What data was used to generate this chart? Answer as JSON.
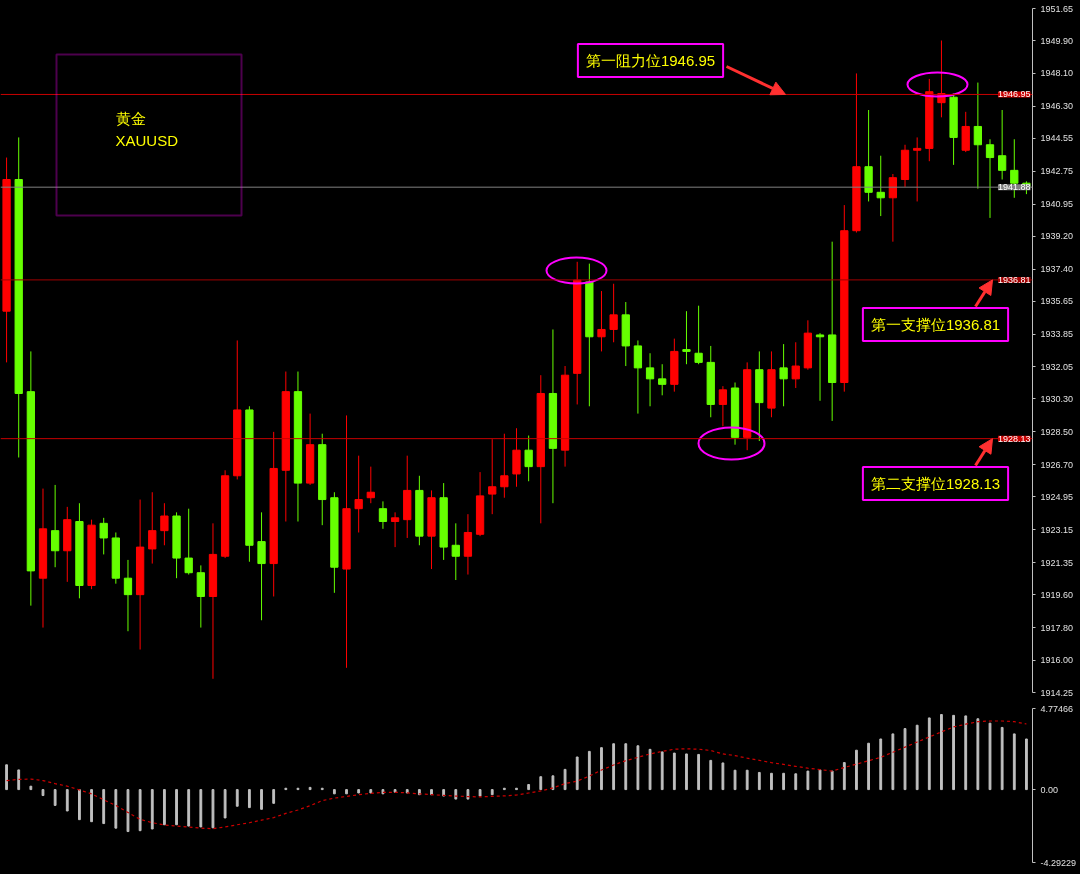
{
  "chart_data": [
    {
      "type": "candlestick",
      "categories": [
        null,
        null,
        null,
        null,
        null,
        null,
        null,
        null,
        null,
        null,
        null,
        null,
        null,
        null,
        null,
        null,
        null,
        null,
        null,
        null,
        null,
        null,
        null,
        null,
        null,
        null,
        null,
        null,
        null,
        null,
        null,
        null,
        null,
        null,
        null,
        null,
        null,
        null,
        null,
        null,
        null,
        null,
        null,
        null,
        null,
        null,
        null,
        null,
        null,
        null,
        null,
        null,
        null,
        null,
        null,
        null,
        null,
        null,
        null,
        null,
        null,
        null,
        null,
        null,
        null,
        null,
        null,
        null,
        null,
        null,
        null,
        null,
        null,
        null,
        null,
        null,
        null,
        null,
        null,
        null,
        null,
        null,
        null,
        null,
        null
      ],
      "ohlc": [
        [
          1935.1,
          1943.5,
          1932.3,
          1942.3
        ],
        [
          1942.3,
          1944.6,
          1927.1,
          1930.6
        ],
        [
          1930.7,
          1932.9,
          1919.0,
          1920.9
        ],
        [
          1920.5,
          1925.4,
          1917.8,
          1923.2
        ],
        [
          1923.1,
          1925.6,
          1921.1,
          1922.0
        ],
        [
          1922.0,
          1924.4,
          1920.3,
          1923.7
        ],
        [
          1923.6,
          1924.6,
          1919.4,
          1920.1
        ],
        [
          1920.1,
          1923.7,
          1919.9,
          1923.4
        ],
        [
          1923.5,
          1923.8,
          1921.8,
          1922.7
        ],
        [
          1922.7,
          1923.0,
          1920.2,
          1920.5
        ],
        [
          1920.5,
          1921.5,
          1917.6,
          1919.6
        ],
        [
          1919.6,
          1924.8,
          1916.6,
          1922.2
        ],
        [
          1922.1,
          1925.2,
          1921.3,
          1923.1
        ],
        [
          1923.1,
          1924.6,
          1922.3,
          1923.9
        ],
        [
          1923.9,
          1924.1,
          1920.5,
          1921.6
        ],
        [
          1921.6,
          1924.3,
          1920.7,
          1920.8
        ],
        [
          1920.8,
          1921.2,
          1917.8,
          1919.5
        ],
        [
          1919.5,
          1923.5,
          1915.0,
          1921.8
        ],
        [
          1921.7,
          1926.4,
          1921.6,
          1926.1
        ],
        [
          1926.1,
          1933.5,
          1925.9,
          1929.7
        ],
        [
          1929.7,
          1929.9,
          1921.4,
          1922.3
        ],
        [
          1922.5,
          1924.1,
          1918.2,
          1921.3
        ],
        [
          1921.3,
          1928.5,
          1919.5,
          1926.5
        ],
        [
          1926.4,
          1931.8,
          1923.6,
          1930.7
        ],
        [
          1930.7,
          1931.8,
          1923.6,
          1925.7
        ],
        [
          1925.7,
          1929.5,
          1925.6,
          1927.8
        ],
        [
          1927.8,
          1928.4,
          1923.4,
          1924.8
        ],
        [
          1924.9,
          1925.2,
          1919.7,
          1921.1
        ],
        [
          1921.0,
          1929.4,
          1915.6,
          1924.3
        ],
        [
          1924.3,
          1927.2,
          1923.0,
          1924.8
        ],
        [
          1924.9,
          1926.6,
          1924.6,
          1925.2
        ],
        [
          1924.3,
          1924.7,
          1923.2,
          1923.6
        ],
        [
          1923.6,
          1924.1,
          1922.2,
          1923.8
        ],
        [
          1923.7,
          1927.2,
          1922.7,
          1925.3
        ],
        [
          1925.3,
          1926.1,
          1922.3,
          1922.8
        ],
        [
          1922.8,
          1925.3,
          1921.0,
          1924.9
        ],
        [
          1924.9,
          1925.7,
          1921.5,
          1922.2
        ],
        [
          1922.3,
          1923.5,
          1920.4,
          1921.7
        ],
        [
          1921.7,
          1924.0,
          1920.7,
          1923.0
        ],
        [
          1922.9,
          1926.3,
          1922.8,
          1925.0
        ],
        [
          1925.1,
          1928.1,
          1924.0,
          1925.5
        ],
        [
          1925.5,
          1928.4,
          1924.9,
          1926.1
        ],
        [
          1926.2,
          1928.7,
          1925.5,
          1927.5
        ],
        [
          1927.5,
          1928.3,
          1925.8,
          1926.6
        ],
        [
          1926.6,
          1931.6,
          1923.5,
          1930.6
        ],
        [
          1930.6,
          1934.1,
          1924.6,
          1927.6
        ],
        [
          1927.5,
          1932.1,
          1926.6,
          1931.6
        ],
        [
          1931.7,
          1937.8,
          1930.0,
          1936.8
        ],
        [
          1936.7,
          1937.7,
          1929.9,
          1933.7
        ],
        [
          1933.7,
          1936.2,
          1932.9,
          1934.1
        ],
        [
          1934.1,
          1936.6,
          1933.4,
          1934.9
        ],
        [
          1934.9,
          1935.6,
          1932.1,
          1933.2
        ],
        [
          1933.2,
          1933.5,
          1929.5,
          1932.0
        ],
        [
          1932.0,
          1932.8,
          1929.9,
          1931.4
        ],
        [
          1931.4,
          1932.2,
          1930.5,
          1931.1
        ],
        [
          1931.1,
          1933.6,
          1930.7,
          1932.9
        ],
        [
          1933.0,
          1935.1,
          1932.2,
          1932.9
        ],
        [
          1932.8,
          1935.4,
          1932.2,
          1932.3
        ],
        [
          1932.3,
          1933.2,
          1929.3,
          1930.0
        ],
        [
          1930.0,
          1931.0,
          1928.8,
          1930.8
        ],
        [
          1930.9,
          1931.2,
          1927.8,
          1928.2
        ],
        [
          1928.2,
          1932.3,
          1927.5,
          1931.9
        ],
        [
          1931.9,
          1932.9,
          1928.0,
          1930.1
        ],
        [
          1929.8,
          1932.9,
          1929.3,
          1931.9
        ],
        [
          1932.0,
          1933.3,
          1929.9,
          1931.4
        ],
        [
          1931.4,
          1933.4,
          1930.9,
          1932.1
        ],
        [
          1932.0,
          1934.6,
          1931.9,
          1933.9
        ],
        [
          1933.8,
          1933.9,
          1930.2,
          1933.7
        ],
        [
          1933.8,
          1938.9,
          1929.1,
          1931.2
        ],
        [
          1931.2,
          1940.9,
          1930.7,
          1939.5
        ],
        [
          1939.5,
          1948.1,
          1939.4,
          1943.0
        ],
        [
          1943.0,
          1946.1,
          1941.1,
          1941.6
        ],
        [
          1941.6,
          1943.6,
          1940.3,
          1941.3
        ],
        [
          1941.3,
          1942.6,
          1938.9,
          1942.4
        ],
        [
          1942.3,
          1944.2,
          1941.9,
          1943.9
        ],
        [
          1943.9,
          1944.6,
          1941.1,
          1944.0
        ],
        [
          1944.0,
          1947.8,
          1943.3,
          1947.1
        ],
        [
          1946.5,
          1949.9,
          1945.7,
          1947.0
        ],
        [
          1946.8,
          1947.0,
          1943.1,
          1944.6
        ],
        [
          1943.9,
          1946.0,
          1943.8,
          1945.2
        ],
        [
          1945.2,
          1947.6,
          1941.8,
          1944.2
        ],
        [
          1944.2,
          1944.5,
          1940.2,
          1943.5
        ],
        [
          1943.6,
          1946.1,
          1942.3,
          1942.8
        ],
        [
          1942.8,
          1944.5,
          1941.3,
          1942.1
        ],
        [
          1942.1,
          1942.2,
          1941.5,
          1941.9
        ]
      ],
      "colors": [
        "#ff0000",
        "#66ff00",
        "#66ff00",
        "#ff0000",
        "#66ff00",
        "#ff0000",
        "#66ff00",
        "#ff0000",
        "#66ff00",
        "#66ff00",
        "#66ff00",
        "#ff0000",
        "#ff0000",
        "#ff0000",
        "#66ff00",
        "#66ff00",
        "#66ff00",
        "#ff0000",
        "#ff0000",
        "#ff0000",
        "#66ff00",
        "#66ff00",
        "#ff0000",
        "#ff0000",
        "#66ff00",
        "#ff0000",
        "#66ff00",
        "#66ff00",
        "#ff0000",
        "#ff0000",
        "#ff0000",
        "#66ff00",
        "#ff0000",
        "#ff0000",
        "#66ff00",
        "#ff0000",
        "#66ff00",
        "#66ff00",
        "#ff0000",
        "#ff0000",
        "#ff0000",
        "#ff0000",
        "#ff0000",
        "#66ff00",
        "#ff0000",
        "#66ff00",
        "#ff0000",
        "#ff0000",
        "#66ff00",
        "#ff0000",
        "#ff0000",
        "#66ff00",
        "#66ff00",
        "#66ff00",
        "#66ff00",
        "#ff0000",
        "#66ff00",
        "#66ff00",
        "#66ff00",
        "#ff0000",
        "#66ff00",
        "#ff0000",
        "#66ff00",
        "#ff0000",
        "#66ff00",
        "#ff0000",
        "#ff0000",
        "#66ff00",
        "#66ff00",
        "#ff0000",
        "#ff0000",
        "#66ff00",
        "#66ff00",
        "#ff0000",
        "#ff0000",
        "#ff0000",
        "#ff0000",
        "#ff0000",
        "#66ff00",
        "#ff0000",
        "#66ff00",
        "#66ff00",
        "#66ff00",
        "#66ff00",
        "#66ff00"
      ],
      "ylim": [
        1914.25,
        1951.65
      ],
      "yticks": [
        1951.65,
        {
          "value": 1949.9,
          "label": "1949.90"
        },
        {
          "value": 1948.1,
          "label": "1948.10"
        },
        {
          "value": 1946.3,
          "label": "1946.30"
        },
        1944.55,
        1942.75,
        1940.95,
        {
          "value": 1939.2,
          "label": "1939.20"
        },
        {
          "value": 1937.4,
          "label": "1937.40"
        },
        1935.65,
        1933.85,
        1932.05,
        {
          "value": 1930.3,
          "label": "1930.30"
        },
        {
          "value": 1928.5,
          "label": "1928.50"
        },
        {
          "value": 1926.7,
          "label": "1926.70"
        },
        1924.95,
        1923.15,
        1921.35,
        {
          "value": 1919.6,
          "label": "1919.60"
        },
        {
          "value": 1917.8,
          "label": "1917.80"
        },
        {
          "value": 1916.0,
          "label": "1916.00"
        },
        1914.25
      ],
      "ref_lines": [
        {
          "axis": "y",
          "value": 1946.95,
          "label": "1946.95",
          "color": "#c80000"
        },
        {
          "axis": "y",
          "value": 1941.88,
          "label": "1941.88",
          "color": "#808080"
        },
        {
          "axis": "y",
          "value": 1936.81,
          "label": "1936.81",
          "color": "#a00000"
        },
        {
          "axis": "y",
          "value": 1928.13,
          "label": "1928.13",
          "color": "#c80000"
        }
      ],
      "annotations": [
        "黄金",
        "XAUUSD",
        {
          "text": "第一阻力位1946.95",
          "y": 1946.95
        },
        {
          "text": "第一支撑位1936.81",
          "y": 1936.81
        },
        {
          "text": "第二支撑位1928.13",
          "y": 1928.13
        }
      ],
      "tick_labels": "y"
    },
    {
      "type": "bar",
      "categories": [
        null,
        null,
        null,
        null,
        null,
        null,
        null,
        null,
        null,
        null,
        null,
        null,
        null,
        null,
        null,
        null,
        null,
        null,
        null,
        null,
        null,
        null,
        null,
        null,
        null,
        null,
        null,
        null,
        null,
        null,
        null,
        null,
        null,
        null,
        null,
        null,
        null,
        null,
        null,
        null,
        null,
        null,
        null,
        null,
        null,
        null,
        null,
        null,
        null,
        null,
        null,
        null,
        null,
        null,
        null,
        null,
        null,
        null,
        null,
        null,
        null,
        null,
        null,
        null,
        null,
        null,
        null,
        null,
        null,
        null,
        null,
        null,
        null,
        null,
        null,
        null,
        null,
        null,
        null,
        null,
        null,
        null,
        null,
        null,
        null
      ],
      "series": [
        {
          "type": "bar",
          "color": "#c0c0c0",
          "values": [
            1.46,
            1.16,
            0.2,
            -0.35,
            -0.93,
            -1.26,
            -1.77,
            -1.89,
            -2.0,
            -2.27,
            -2.47,
            -2.42,
            -2.32,
            -2.07,
            -2.07,
            -2.15,
            -2.2,
            -2.25,
            -1.67,
            -0.98,
            -1.06,
            -1.16,
            -0.81,
            0.08,
            0.08,
            0.13,
            0.08,
            -0.25,
            -0.25,
            -0.2,
            -0.2,
            -0.25,
            -0.15,
            -0.2,
            -0.3,
            -0.3,
            -0.38,
            -0.56,
            -0.56,
            -0.38,
            -0.3,
            0.08,
            0.08,
            0.3,
            0.76,
            0.81,
            1.19,
            1.92,
            2.25,
            2.47,
            2.7,
            2.7,
            2.58,
            2.37,
            2.22,
            2.15,
            2.1,
            2.07,
            1.72,
            1.57,
            1.14,
            1.14,
            1.01,
            0.96,
            0.96,
            0.93,
            1.09,
            1.16,
            1.09,
            1.59,
            2.32,
            2.73,
            2.98,
            3.28,
            3.59,
            3.79,
            4.22,
            4.42,
            4.37,
            4.34,
            4.17,
            3.91,
            3.66,
            3.28,
            2.98
          ]
        },
        {
          "type": "line",
          "color": "#cc0000",
          "line_style": "dashed",
          "values": [
            0.53,
            0.6,
            0.62,
            0.53,
            0.35,
            0.2,
            -0.02,
            -0.25,
            -0.6,
            -0.93,
            -1.35,
            -1.75,
            -1.95,
            -2.08,
            -2.15,
            -2.2,
            -2.27,
            -2.3,
            -2.2,
            -2.07,
            -1.95,
            -1.8,
            -1.65,
            -1.4,
            -1.2,
            -0.95,
            -0.65,
            -0.5,
            -0.4,
            -0.3,
            -0.22,
            -0.16,
            -0.16,
            -0.19,
            -0.25,
            -0.3,
            -0.34,
            -0.38,
            -0.41,
            -0.43,
            -0.4,
            -0.37,
            -0.32,
            -0.2,
            -0.08,
            0.1,
            0.35,
            0.5,
            0.8,
            1.15,
            1.45,
            1.7,
            1.9,
            2.1,
            2.25,
            2.38,
            2.4,
            2.38,
            2.3,
            2.1,
            2.0,
            1.85,
            1.72,
            1.59,
            1.48,
            1.37,
            1.26,
            1.18,
            1.09,
            1.3,
            1.5,
            1.7,
            1.9,
            2.2,
            2.5,
            2.8,
            3.1,
            3.4,
            3.69,
            3.85,
            4.0,
            4.04,
            4.04,
            4.0,
            3.86
          ]
        }
      ],
      "ylim": [
        -4.29229,
        4.77466
      ],
      "yticks": [
        4.77466,
        {
          "value": 0,
          "label": "0.00"
        },
        -4.29229
      ],
      "tick_labels": "y"
    }
  ]
}
